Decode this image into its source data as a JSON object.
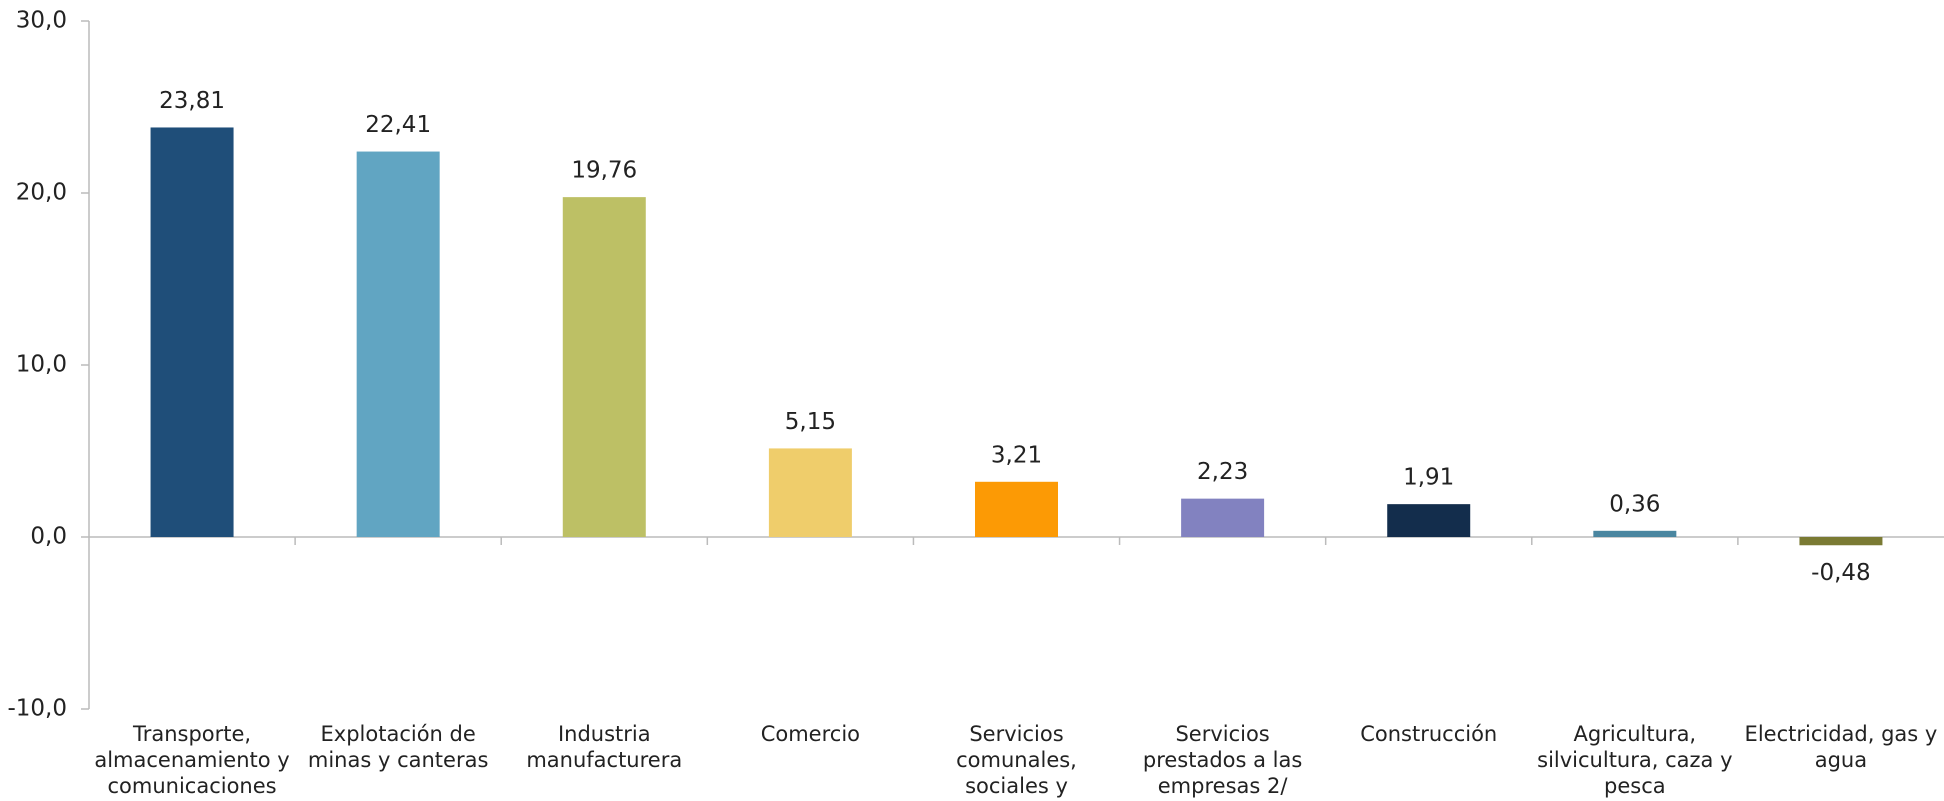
{
  "chart_data": {
    "type": "bar",
    "categories": [
      "Transporte, almacenamiento y comunicaciones",
      "Explotación de minas y canteras",
      "Industria manufacturera",
      "Comercio",
      "Servicios comunales, sociales y personales",
      "Servicios prestados a las empresas 2/",
      "Construcción",
      "Agricultura, silvicultura, caza y pesca",
      "Electricidad, gas y agua"
    ],
    "values": [
      23.81,
      22.41,
      19.76,
      5.15,
      3.21,
      2.23,
      1.91,
      0.36,
      -0.48
    ],
    "value_labels": [
      "23,81",
      "22,41",
      "19,76",
      "5,15",
      "3,21",
      "2,23",
      "1,91",
      "0,36",
      "-0,48"
    ],
    "colors": [
      "#1f4e79",
      "#61a5c2",
      "#bdc065",
      "#efcd6b",
      "#fc9a05",
      "#8282c0",
      "#132d4c",
      "#4a86a0",
      "#7a7a33"
    ],
    "ylim": [
      -10,
      30
    ],
    "yticks": [
      {
        "value": -10,
        "label": "-10,0"
      },
      {
        "value": 0,
        "label": "0,0"
      },
      {
        "value": 10,
        "label": "10,0"
      },
      {
        "value": 20,
        "label": "20,0"
      },
      {
        "value": 30,
        "label": "30,0"
      }
    ]
  }
}
